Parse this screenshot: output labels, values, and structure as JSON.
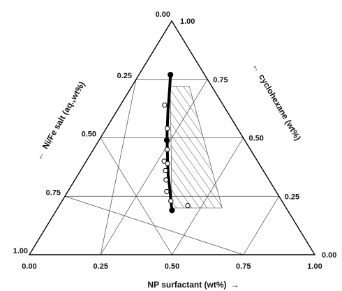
{
  "chart_data": {
    "type": "scatter",
    "subtype": "ternary",
    "grid": true,
    "axes": {
      "bottom": {
        "label": "NP surfactant (wt%)",
        "arrow": "→",
        "ticks": [
          "0.00",
          "0.25",
          "0.50",
          "0.75",
          "1.00"
        ]
      },
      "left": {
        "label": "Ni/Fe salt (aq.,wt%)",
        "arrow": "←",
        "ticks": [
          "0.00",
          "0.25",
          "0.50",
          "0.75",
          "1.00"
        ]
      },
      "right": {
        "label": "cyclohexane (wt%)",
        "arrow": "←",
        "ticks": [
          "1.00",
          "0.75",
          "0.50",
          "0.25",
          "0.00"
        ]
      }
    },
    "phase_boundary": [
      {
        "salt": 0.23,
        "np": 0.48
      },
      {
        "salt": 0.28,
        "np": 0.475
      },
      {
        "salt": 0.33,
        "np": 0.47
      },
      {
        "salt": 0.38,
        "np": 0.465
      },
      {
        "salt": 0.43,
        "np": 0.465
      },
      {
        "salt": 0.48,
        "np": 0.465
      },
      {
        "salt": 0.54,
        "np": 0.47
      },
      {
        "salt": 0.6,
        "np": 0.475
      },
      {
        "salt": 0.66,
        "np": 0.48
      },
      {
        "salt": 0.72,
        "np": 0.49
      },
      {
        "salt": 0.77,
        "np": 0.495
      },
      {
        "salt": 0.81,
        "np": 0.5
      }
    ],
    "filled_points": [
      {
        "salt": 0.23,
        "np": 0.48
      },
      {
        "salt": 0.51,
        "np": 0.465
      },
      {
        "salt": 0.81,
        "np": 0.5
      }
    ],
    "open_points": [
      {
        "salt": 0.36,
        "np": 0.43
      },
      {
        "salt": 0.46,
        "np": 0.465
      },
      {
        "salt": 0.55,
        "np": 0.47
      },
      {
        "salt": 0.6,
        "np": 0.455
      },
      {
        "salt": 0.61,
        "np": 0.475
      },
      {
        "salt": 0.64,
        "np": 0.465
      },
      {
        "salt": 0.68,
        "np": 0.47
      },
      {
        "salt": 0.73,
        "np": 0.475
      },
      {
        "salt": 0.77,
        "np": 0.495
      },
      {
        "salt": 0.79,
        "np": 0.57
      }
    ],
    "hatched_region": [
      {
        "salt": 0.28,
        "np": 0.48
      },
      {
        "salt": 0.28,
        "np": 0.72
      },
      {
        "salt": 0.8,
        "np": 0.72
      },
      {
        "salt": 0.8,
        "np": 0.5
      }
    ]
  }
}
